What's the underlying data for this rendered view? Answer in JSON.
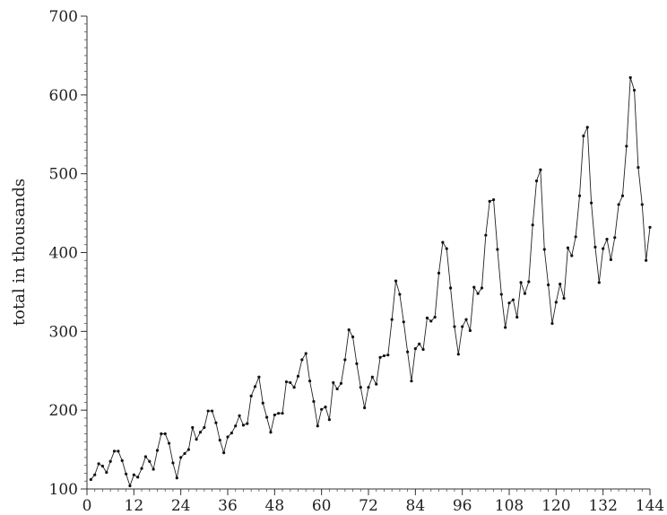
{
  "chart_data": {
    "type": "line",
    "title": "",
    "xlabel": "",
    "ylabel": "total in thousands",
    "xlim": [
      0,
      144
    ],
    "ylim": [
      100,
      700
    ],
    "x_ticks": [
      0,
      12,
      24,
      36,
      48,
      60,
      72,
      84,
      96,
      108,
      120,
      132,
      144
    ],
    "x_tick_labels": [
      "0",
      "12",
      "24",
      "36",
      "48",
      "60",
      "72",
      "84",
      "96",
      "108",
      "120",
      "132",
      "144"
    ],
    "y_ticks": [
      100,
      200,
      300,
      400,
      500,
      600,
      700
    ],
    "y_tick_labels": [
      "100",
      "200",
      "300",
      "400",
      "500",
      "600",
      "700"
    ],
    "grid": false,
    "markers": true,
    "series": [
      {
        "x_start": 1,
        "values": [
          112,
          118,
          132,
          129,
          121,
          135,
          148,
          148,
          136,
          119,
          104,
          118,
          115,
          126,
          141,
          135,
          125,
          149,
          170,
          170,
          158,
          133,
          114,
          140,
          145,
          150,
          178,
          163,
          172,
          178,
          199,
          199,
          184,
          162,
          146,
          166,
          171,
          180,
          193,
          181,
          183,
          218,
          230,
          242,
          209,
          191,
          172,
          194,
          196,
          196,
          236,
          235,
          229,
          243,
          264,
          272,
          237,
          211,
          180,
          201,
          204,
          188,
          235,
          227,
          234,
          264,
          302,
          293,
          259,
          229,
          203,
          229,
          242,
          233,
          267,
          269,
          270,
          315,
          364,
          347,
          312,
          274,
          237,
          278,
          284,
          277,
          317,
          313,
          318,
          374,
          413,
          405,
          355,
          306,
          271,
          306,
          315,
          301,
          356,
          348,
          355,
          422,
          465,
          467,
          404,
          347,
          305,
          336,
          340,
          318,
          362,
          348,
          363,
          435,
          491,
          505,
          404,
          359,
          310,
          337,
          360,
          342,
          406,
          396,
          420,
          472,
          548,
          559,
          463,
          407,
          362,
          405,
          417,
          391,
          419,
          461,
          472,
          535,
          622,
          606,
          508,
          461,
          390,
          432
        ]
      }
    ]
  }
}
